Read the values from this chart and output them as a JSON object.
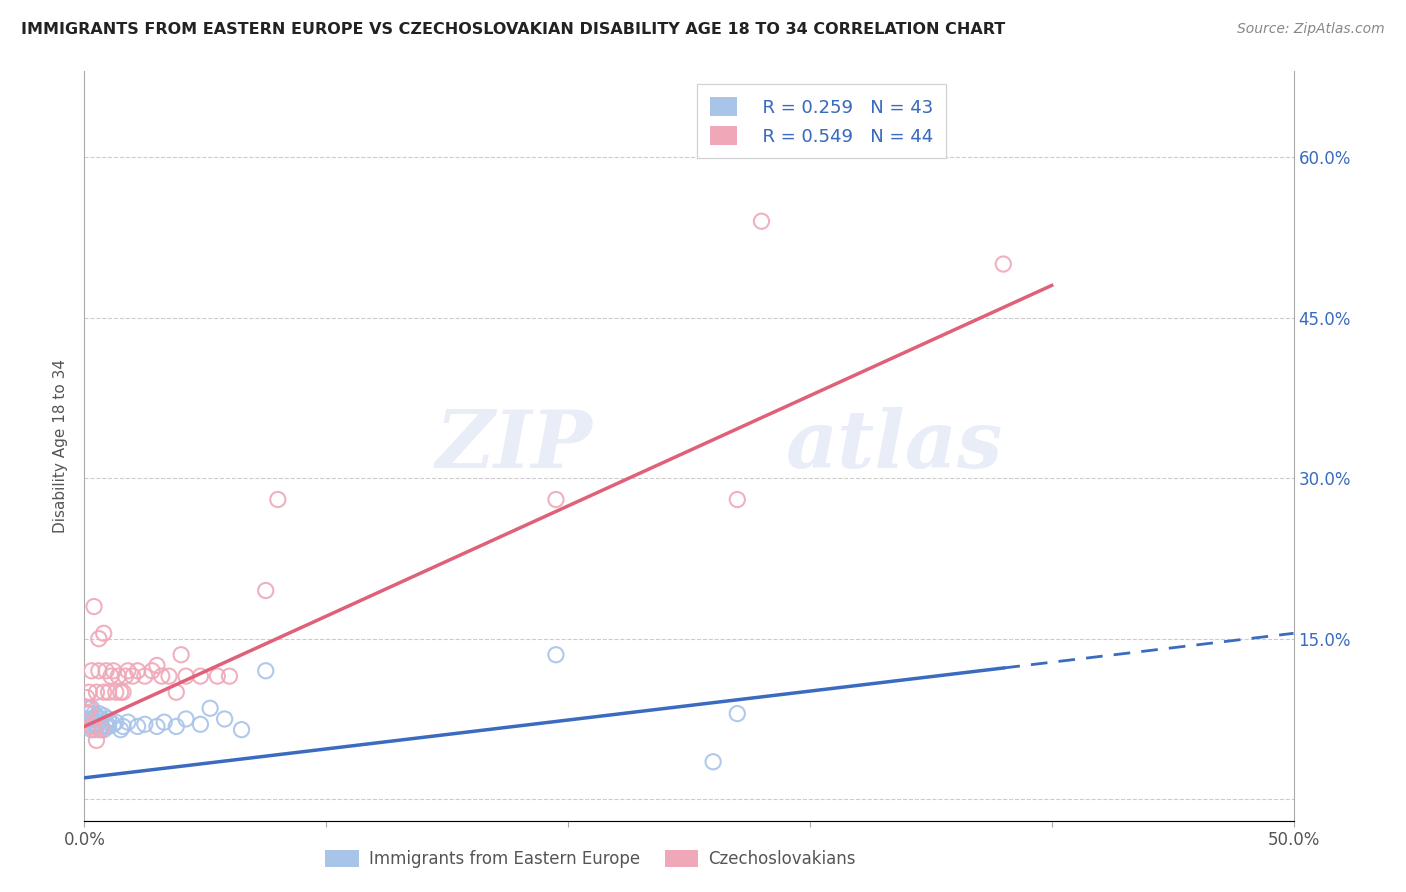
{
  "title": "IMMIGRANTS FROM EASTERN EUROPE VS CZECHOSLOVAKIAN DISABILITY AGE 18 TO 34 CORRELATION CHART",
  "source": "Source: ZipAtlas.com",
  "ylabel": "Disability Age 18 to 34",
  "xlim": [
    0.0,
    0.5
  ],
  "ylim": [
    -0.02,
    0.68
  ],
  "xticks": [
    0.0,
    0.1,
    0.2,
    0.3,
    0.4,
    0.5
  ],
  "xticklabels": [
    "0.0%",
    "",
    "",
    "",
    "",
    "50.0%"
  ],
  "yticks_right": [
    0.0,
    0.15,
    0.3,
    0.45,
    0.6
  ],
  "yticklabels_right": [
    "",
    "15.0%",
    "30.0%",
    "45.0%",
    "60.0%"
  ],
  "blue_color": "#a8c4e8",
  "pink_color": "#f0a8b8",
  "blue_line_color": "#3a6bbf",
  "pink_line_color": "#e0607a",
  "watermark_text": "ZIP",
  "watermark_text2": "atlas",
  "legend_label1": "Immigrants from Eastern Europe",
  "legend_label2": "Czechoslovakians",
  "legend_r1": "R = 0.259",
  "legend_n1": "N = 43",
  "legend_r2": "R = 0.549",
  "legend_n2": "N = 44",
  "blue_scatter_x": [
    0.001,
    0.001,
    0.002,
    0.002,
    0.003,
    0.003,
    0.003,
    0.004,
    0.004,
    0.004,
    0.005,
    0.005,
    0.005,
    0.006,
    0.006,
    0.006,
    0.007,
    0.007,
    0.008,
    0.008,
    0.009,
    0.009,
    0.01,
    0.01,
    0.012,
    0.013,
    0.015,
    0.016,
    0.018,
    0.022,
    0.025,
    0.03,
    0.033,
    0.038,
    0.042,
    0.048,
    0.052,
    0.058,
    0.065,
    0.075,
    0.195,
    0.26,
    0.27
  ],
  "blue_scatter_y": [
    0.075,
    0.085,
    0.07,
    0.08,
    0.065,
    0.075,
    0.085,
    0.07,
    0.08,
    0.075,
    0.068,
    0.078,
    0.07,
    0.072,
    0.065,
    0.08,
    0.068,
    0.075,
    0.065,
    0.078,
    0.068,
    0.072,
    0.068,
    0.075,
    0.07,
    0.072,
    0.065,
    0.068,
    0.072,
    0.068,
    0.07,
    0.068,
    0.072,
    0.068,
    0.075,
    0.07,
    0.085,
    0.075,
    0.065,
    0.12,
    0.135,
    0.035,
    0.08
  ],
  "pink_scatter_x": [
    0.001,
    0.001,
    0.002,
    0.002,
    0.003,
    0.003,
    0.004,
    0.004,
    0.005,
    0.005,
    0.006,
    0.006,
    0.007,
    0.008,
    0.008,
    0.009,
    0.01,
    0.011,
    0.012,
    0.013,
    0.014,
    0.015,
    0.016,
    0.017,
    0.018,
    0.02,
    0.022,
    0.025,
    0.028,
    0.03,
    0.032,
    0.035,
    0.038,
    0.04,
    0.042,
    0.048,
    0.055,
    0.06,
    0.075,
    0.08,
    0.195,
    0.27,
    0.28,
    0.38
  ],
  "pink_scatter_y": [
    0.08,
    0.095,
    0.085,
    0.1,
    0.068,
    0.12,
    0.065,
    0.18,
    0.055,
    0.1,
    0.15,
    0.12,
    0.065,
    0.1,
    0.155,
    0.12,
    0.1,
    0.115,
    0.12,
    0.1,
    0.115,
    0.1,
    0.1,
    0.115,
    0.12,
    0.115,
    0.12,
    0.115,
    0.12,
    0.125,
    0.115,
    0.115,
    0.1,
    0.135,
    0.115,
    0.115,
    0.115,
    0.115,
    0.195,
    0.28,
    0.28,
    0.28,
    0.54,
    0.5
  ],
  "blue_line_x0": 0.0,
  "blue_line_y0": 0.02,
  "blue_line_x1": 0.5,
  "blue_line_y1": 0.155,
  "pink_line_x0": 0.0,
  "pink_line_y0": 0.068,
  "pink_line_x1": 0.4,
  "pink_line_y1": 0.48
}
